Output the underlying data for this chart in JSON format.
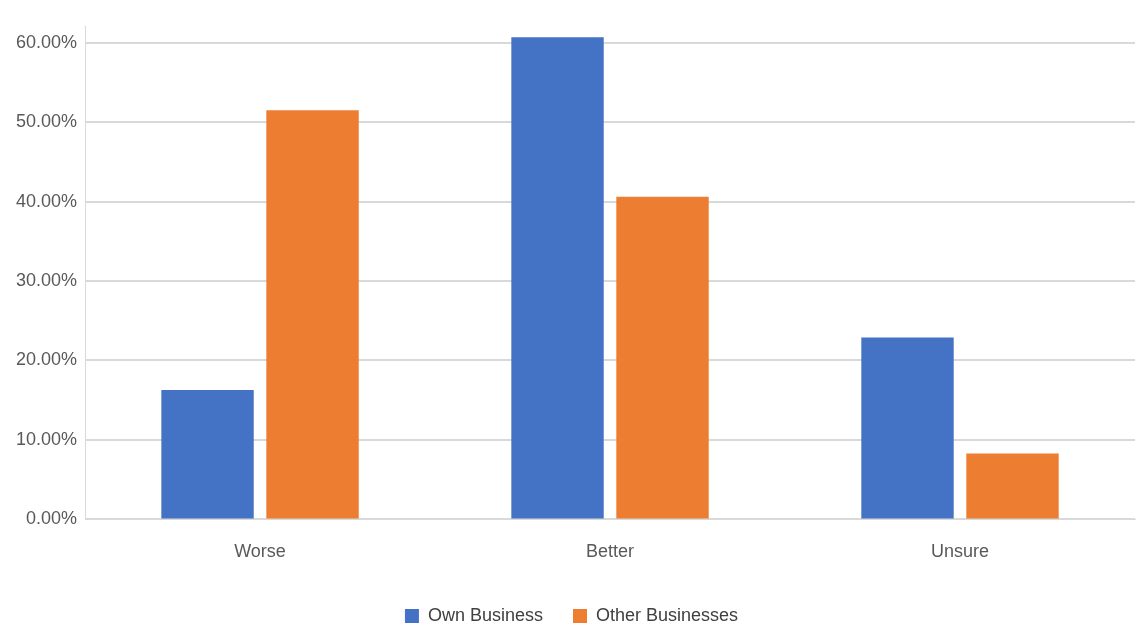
{
  "chart_data": {
    "type": "bar",
    "categories": [
      "Worse",
      "Better",
      "Unsure"
    ],
    "series": [
      {
        "name": "Own Business",
        "color": "#4472c4",
        "values": [
          16.3,
          60.7,
          22.9
        ]
      },
      {
        "name": "Other Businesses",
        "color": "#ed7d31",
        "values": [
          51.5,
          40.6,
          8.3
        ]
      }
    ],
    "ylim": [
      0,
      62
    ],
    "yticks": [
      {
        "value": 0,
        "label": "0.00%"
      },
      {
        "value": 10,
        "label": "10.00%"
      },
      {
        "value": 20,
        "label": "20.00%"
      },
      {
        "value": 30,
        "label": "30.00%"
      },
      {
        "value": 40,
        "label": "40.00%"
      },
      {
        "value": 50,
        "label": "50.00%"
      },
      {
        "value": 60,
        "label": "60.00%"
      }
    ],
    "grid": "y",
    "legend": "bottom"
  }
}
